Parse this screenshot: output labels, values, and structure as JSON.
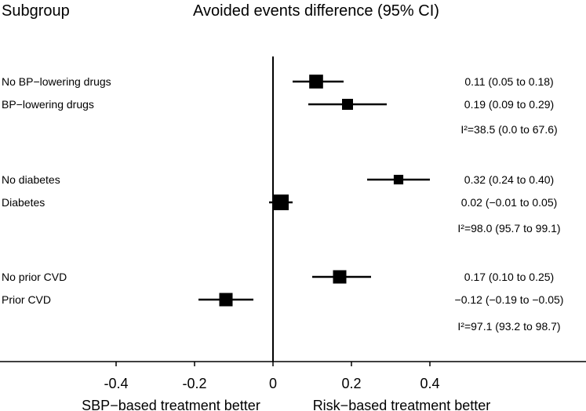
{
  "chart_data": {
    "type": "forest",
    "title": "Avoided events difference (95% CI)",
    "subgroup_header": "Subgroup",
    "xlim": [
      -0.53,
      0.72
    ],
    "xticks": [
      -0.4,
      -0.2,
      0,
      0.2,
      0.4
    ],
    "xtick_labels": [
      "-0.4",
      "-0.2",
      "0",
      "0.2",
      "0.4"
    ],
    "left_label": "SBP−based treatment better",
    "right_label": "Risk−based treatment better",
    "rows": [
      {
        "label": "No BP−lowering drugs",
        "estimate": 0.11,
        "lower": 0.05,
        "upper": 0.18,
        "text": "0.11 (0.05 to 0.18)",
        "weight": 0.8
      },
      {
        "label": "BP−lowering drugs",
        "estimate": 0.19,
        "lower": 0.09,
        "upper": 0.29,
        "text": "0.19 (0.09 to 0.29)",
        "weight": 0.5
      },
      {
        "label": "",
        "heterogeneity": true,
        "text": "I²=38.5 (0.0 to 67.6)"
      },
      {
        "label": "No diabetes",
        "estimate": 0.32,
        "lower": 0.24,
        "upper": 0.4,
        "text": "0.32 (0.24 to 0.40)",
        "weight": 0.35
      },
      {
        "label": "Diabetes",
        "estimate": 0.02,
        "lower": -0.01,
        "upper": 0.05,
        "text": "0.02 (−0.01 to 0.05)",
        "weight": 1.0
      },
      {
        "label": "",
        "heterogeneity": true,
        "text": "I²=98.0 (95.7 to 99.1)"
      },
      {
        "label": "No prior CVD",
        "estimate": 0.17,
        "lower": 0.1,
        "upper": 0.25,
        "text": "0.17 (0.10 to 0.25)",
        "weight": 0.75
      },
      {
        "label": "Prior CVD",
        "estimate": -0.12,
        "lower": -0.19,
        "upper": -0.05,
        "text": "−0.12 (−0.19 to −0.05)",
        "weight": 0.75
      },
      {
        "label": "",
        "heterogeneity": true,
        "text": "I²=97.1 (93.2 to 98.7)"
      }
    ]
  }
}
